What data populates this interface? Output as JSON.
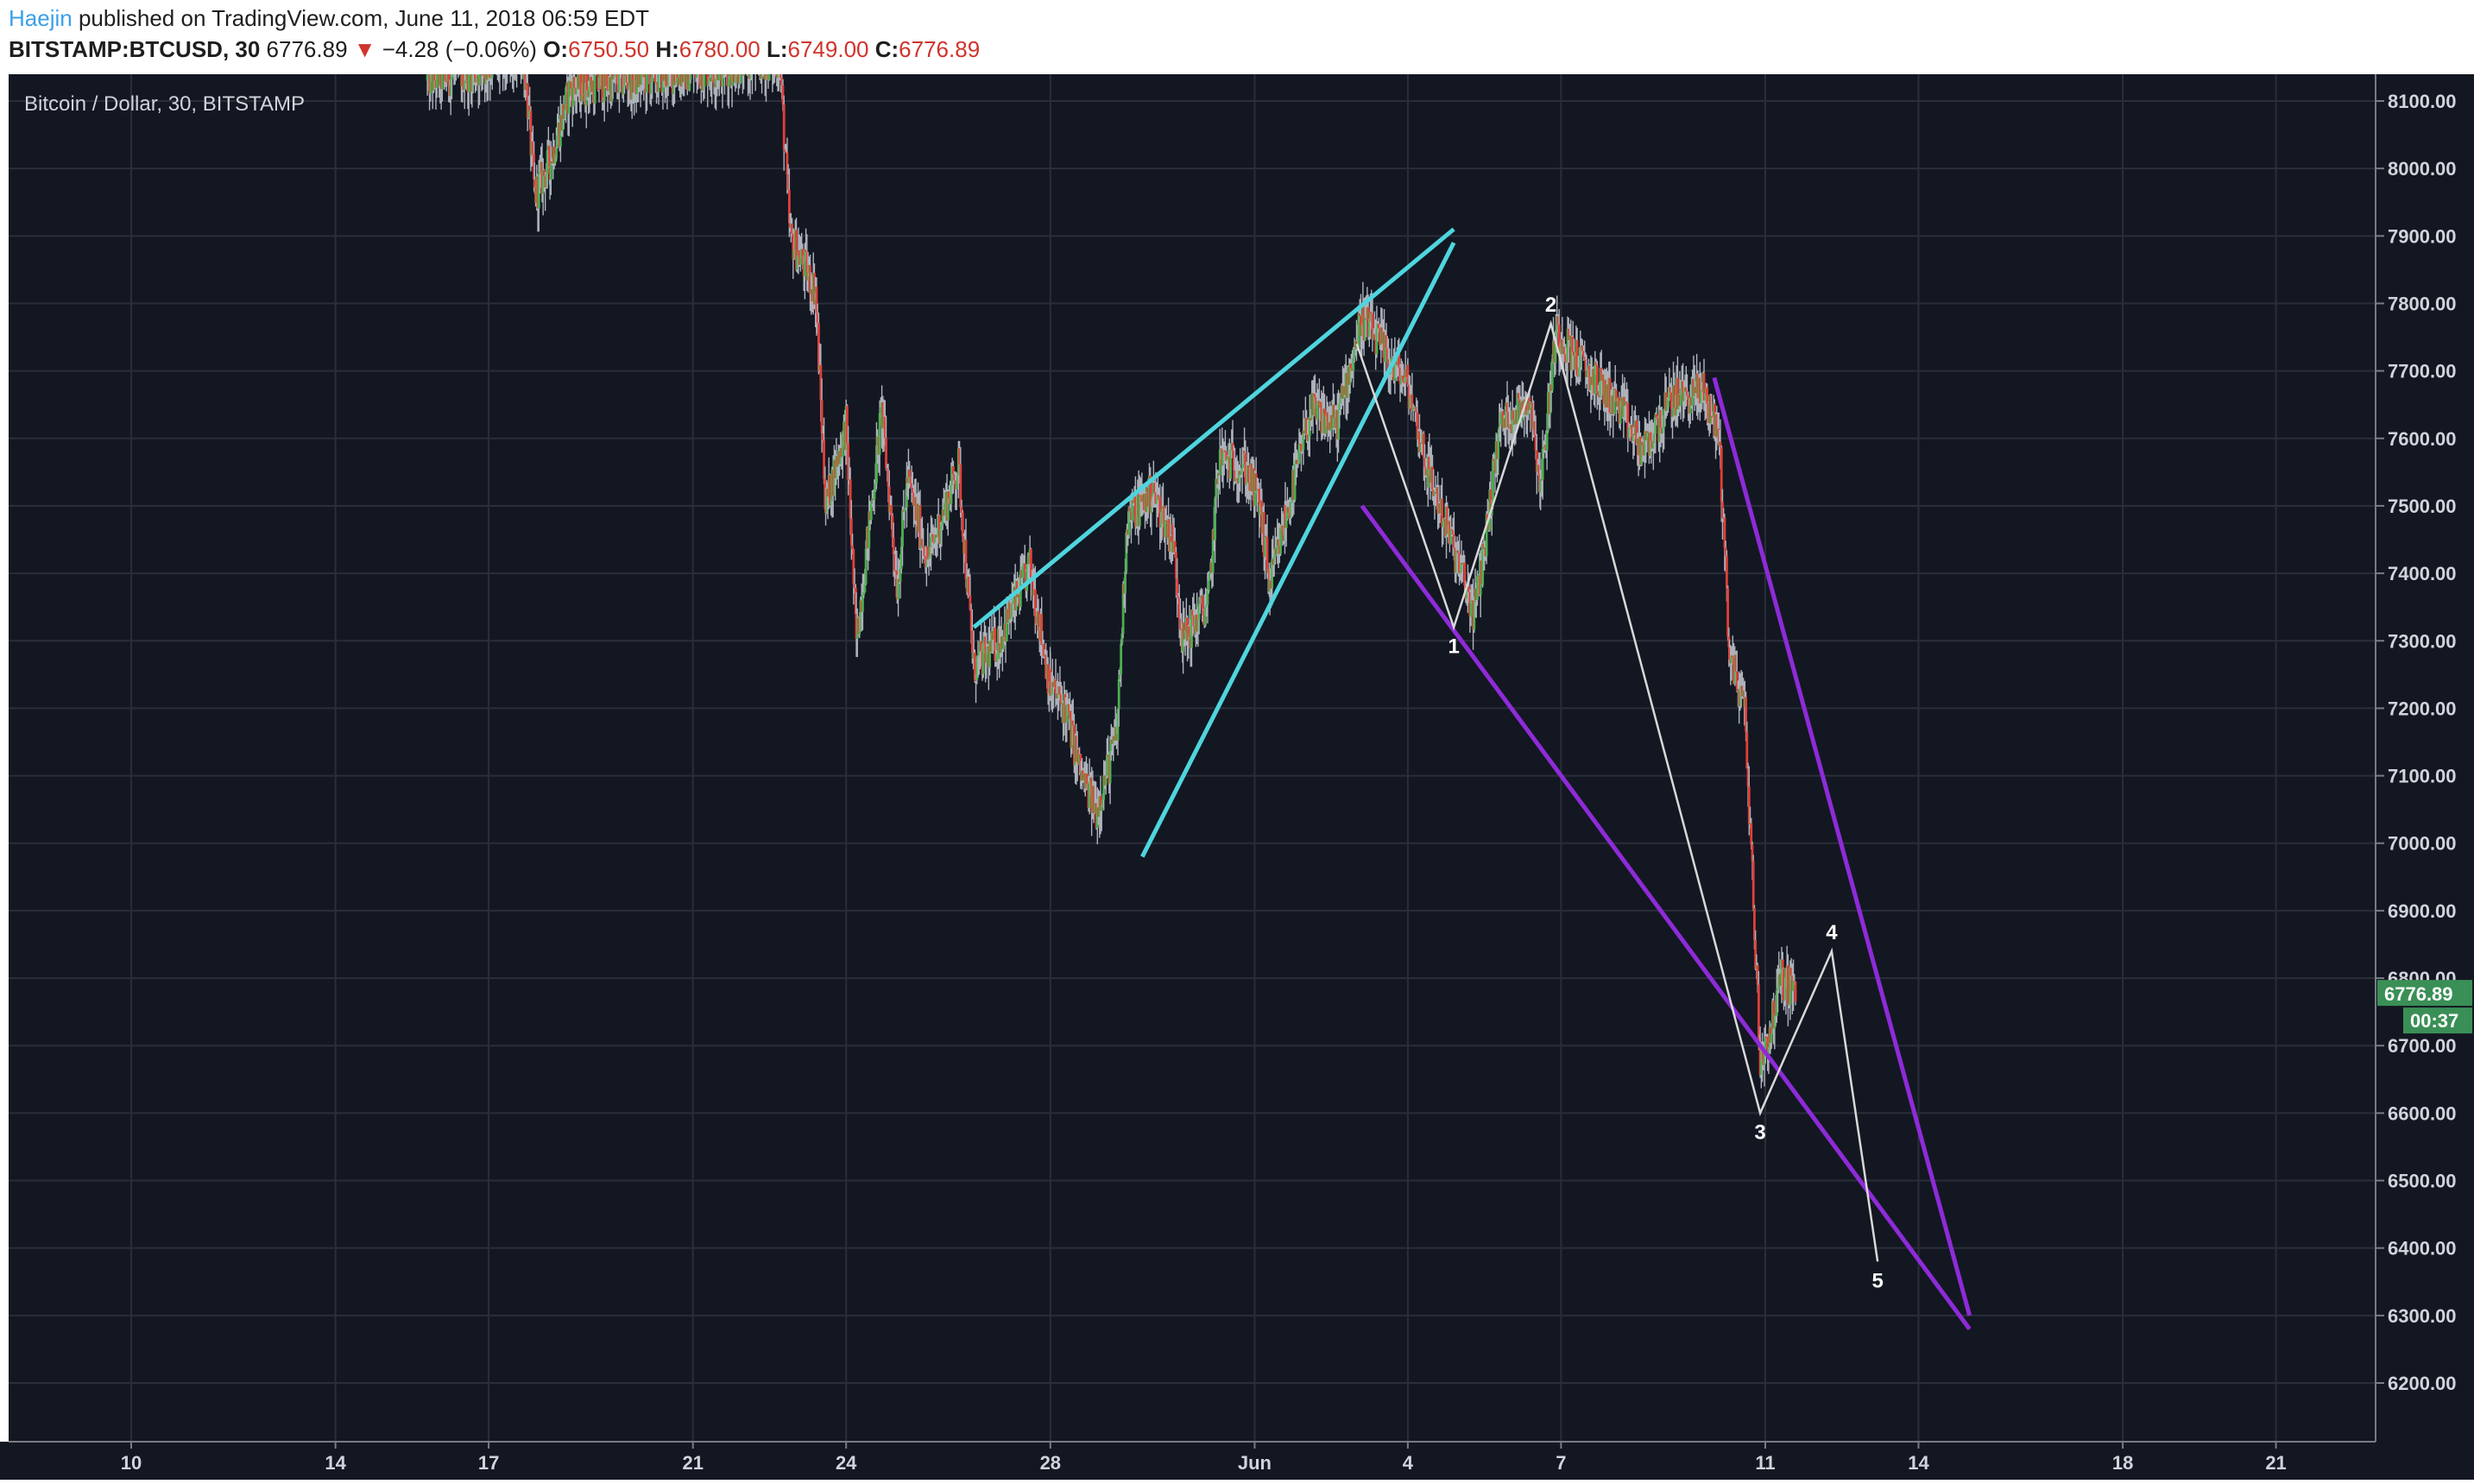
{
  "header": {
    "author": "Haejin",
    "published": "published on TradingView.com, June 11, 2018 06:59 EDT",
    "symbol": "BITSTAMP:BTCUSD, 30",
    "last": "6776.89",
    "change_arrow": "▼",
    "change": "−4.28 (−0.06%)",
    "o_label": "O:",
    "o_value": "6750.50",
    "h_label": "H:",
    "h_value": "6780.00",
    "l_label": "L:",
    "l_value": "6749.00",
    "c_label": "C:",
    "c_value": "6776.89"
  },
  "chart_data": {
    "type": "candlestick",
    "title": "Bitcoin / Dollar, 30, BITSTAMP",
    "x_labels": [
      "10",
      "14",
      "17",
      "21",
      "24",
      "28",
      "Jun",
      "4",
      "7",
      "11",
      "14",
      "18",
      "21"
    ],
    "y_ticks": [
      "8100.00",
      "8000.00",
      "7900.00",
      "7800.00",
      "7700.00",
      "7600.00",
      "7500.00",
      "7400.00",
      "7300.00",
      "7200.00",
      "7100.00",
      "7000.00",
      "6900.00",
      "6800.00",
      "6700.00",
      "6600.00",
      "6500.00",
      "6400.00",
      "6300.00",
      "6200.00"
    ],
    "ylim": [
      6100,
      8150
    ],
    "last_price": "6776.89",
    "countdown": "00:37",
    "price_path": [
      [
        15.8,
        8130
      ],
      [
        17.7,
        8160
      ],
      [
        17.9,
        7960
      ],
      [
        18.2,
        8010
      ],
      [
        18.6,
        8120
      ],
      [
        22.7,
        8160
      ],
      [
        22.9,
        7900
      ],
      [
        23.4,
        7820
      ],
      [
        23.6,
        7500
      ],
      [
        24.0,
        7620
      ],
      [
        24.2,
        7300
      ],
      [
        24.7,
        7640
      ],
      [
        25.0,
        7380
      ],
      [
        25.2,
        7540
      ],
      [
        25.6,
        7420
      ],
      [
        26.2,
        7560
      ],
      [
        26.5,
        7260
      ],
      [
        27.0,
        7300
      ],
      [
        27.6,
        7410
      ],
      [
        28.0,
        7230
      ],
      [
        28.3,
        7200
      ],
      [
        28.6,
        7100
      ],
      [
        28.9,
        7050
      ],
      [
        29.3,
        7160
      ],
      [
        29.5,
        7480
      ],
      [
        30.0,
        7520
      ],
      [
        30.4,
        7450
      ],
      [
        30.6,
        7300
      ],
      [
        31.1,
        7360
      ],
      [
        31.3,
        7570
      ],
      [
        31.8,
        7560
      ],
      [
        32.1,
        7500
      ],
      [
        32.3,
        7380
      ],
      [
        32.6,
        7480
      ],
      [
        33.1,
        7640
      ],
      [
        33.6,
        7620
      ],
      [
        34.1,
        7780
      ],
      [
        34.6,
        7720
      ],
      [
        35.0,
        7680
      ],
      [
        35.4,
        7550
      ],
      [
        35.8,
        7460
      ],
      [
        36.3,
        7340
      ],
      [
        36.5,
        7440
      ],
      [
        36.8,
        7620
      ],
      [
        37.4,
        7660
      ],
      [
        37.6,
        7530
      ],
      [
        37.9,
        7760
      ],
      [
        38.5,
        7700
      ],
      [
        39.1,
        7650
      ],
      [
        39.6,
        7580
      ],
      [
        40.2,
        7660
      ],
      [
        40.8,
        7670
      ],
      [
        41.1,
        7600
      ],
      [
        41.3,
        7280
      ],
      [
        41.6,
        7200
      ],
      [
        41.9,
        6680
      ],
      [
        42.1,
        6720
      ],
      [
        42.3,
        6800
      ],
      [
        42.6,
        6780
      ]
    ],
    "annotations": {
      "cyan_lines": [
        {
          "from": [
            26.5,
            7320
          ],
          "to": [
            35.9,
            7910
          ]
        },
        {
          "from": [
            29.8,
            6980
          ],
          "to": [
            35.9,
            7890
          ]
        }
      ],
      "purple_lines": [
        {
          "from": [
            34.1,
            7500
          ],
          "to": [
            46.0,
            6280
          ]
        },
        {
          "from": [
            41.0,
            7690
          ],
          "to": [
            46.0,
            6300
          ]
        }
      ],
      "wave_path": [
        [
          34.0,
          7740
        ],
        [
          35.9,
          7320
        ],
        [
          37.8,
          7770
        ],
        [
          41.9,
          6600
        ],
        [
          43.3,
          6840
        ],
        [
          44.2,
          6380
        ]
      ],
      "wave_labels": [
        {
          "text": "1",
          "at": [
            35.9,
            7320
          ]
        },
        {
          "text": "2",
          "at": [
            37.8,
            7770
          ]
        },
        {
          "text": "3",
          "at": [
            41.9,
            6600
          ]
        },
        {
          "text": "4",
          "at": [
            43.3,
            6840
          ]
        },
        {
          "text": "5",
          "at": [
            44.2,
            6380
          ]
        }
      ]
    }
  },
  "colors": {
    "background": "#131722",
    "grid": "#2a2e39",
    "up": "#4caf50",
    "down": "#e0403a",
    "wick": "#b0b4bc",
    "cyan": "#4fd5de",
    "purple": "#8e2bd8",
    "wave": "#d8d8d8",
    "label": "#d1d4dc",
    "price_tag": "#3a8f56"
  }
}
